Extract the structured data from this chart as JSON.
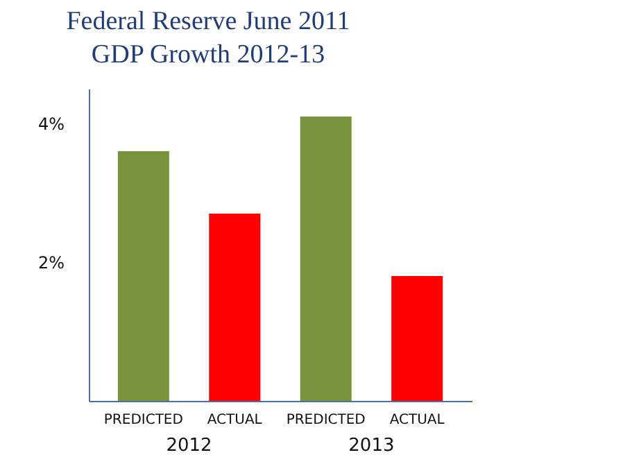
{
  "chart_data": {
    "type": "bar",
    "title": "Federal Reserve June 2011\nGDP Growth 2012-13",
    "categories": [
      "PREDICTED",
      "ACTUAL",
      "PREDICTED",
      "ACTUAL"
    ],
    "values": [
      3.6,
      2.7,
      4.1,
      1.8
    ],
    "colors": [
      "#77933c",
      "#ff0000",
      "#77933c",
      "#ff0000"
    ],
    "ylim": [
      0,
      4.5
    ],
    "yticks": [
      {
        "value": 2,
        "label": "2%"
      },
      {
        "value": 4,
        "label": "4%"
      }
    ],
    "annotations": [
      "2012",
      "2013"
    ]
  }
}
